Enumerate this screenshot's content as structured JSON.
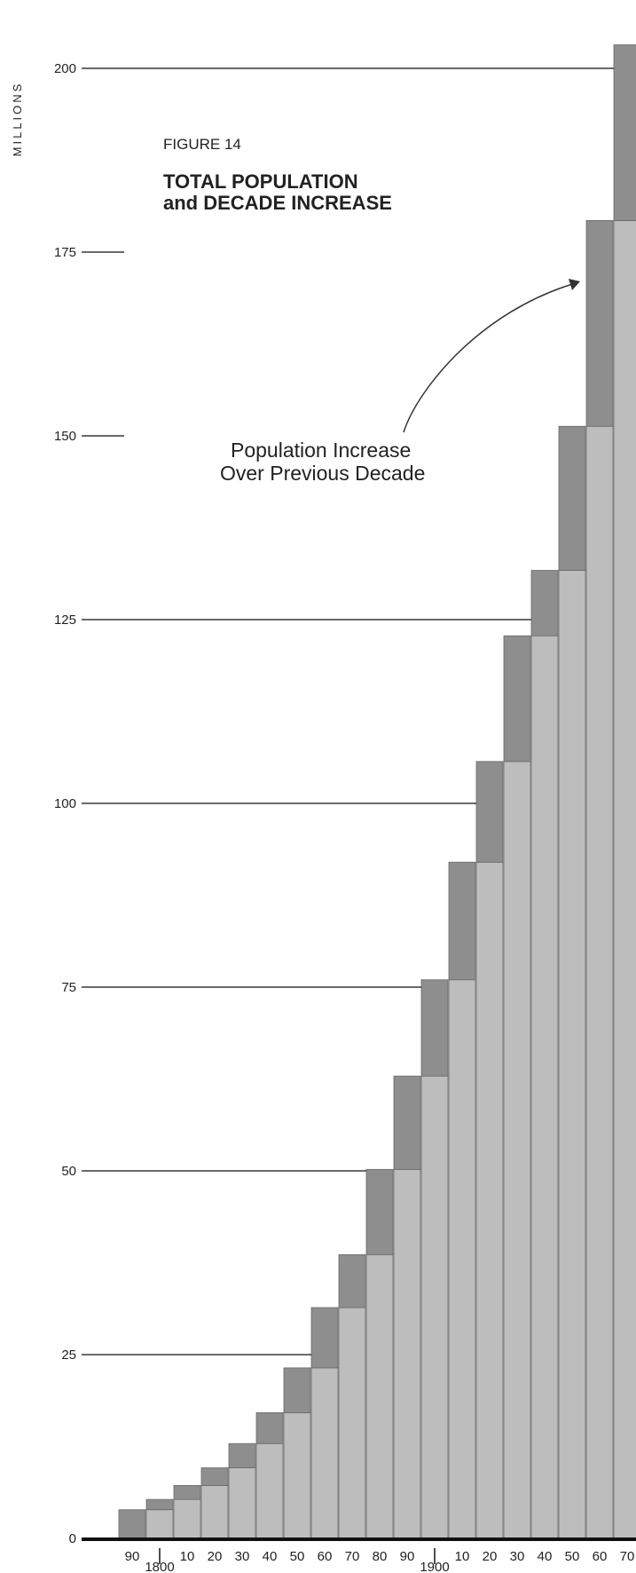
{
  "chart_data": {
    "type": "bar",
    "figure_label": "FIGURE 14",
    "title_line1": "TOTAL POPULATION",
    "title_line2": "and DECADE INCREASE",
    "ylabel": "MILLIONS",
    "annotation_line1": "Population Increase",
    "annotation_line2": "Over Previous Decade",
    "ylim": [
      0,
      205
    ],
    "yticks": [
      0,
      25,
      50,
      75,
      100,
      125,
      150,
      175,
      200
    ],
    "categories": [
      "1790",
      "1800",
      "1810",
      "1820",
      "1830",
      "1840",
      "1850",
      "1860",
      "1870",
      "1880",
      "1890",
      "1900",
      "1910",
      "1920",
      "1930",
      "1940",
      "1950",
      "1960",
      "1970"
    ],
    "x_tick_labels": [
      "90",
      "",
      "10",
      "20",
      "30",
      "40",
      "50",
      "60",
      "70",
      "80",
      "90",
      "",
      "10",
      "20",
      "30",
      "40",
      "50",
      "60",
      "70"
    ],
    "century_labels": [
      {
        "index": 1,
        "label": "1800"
      },
      {
        "index": 11,
        "label": "1900"
      }
    ],
    "values": [
      3.9,
      5.3,
      7.2,
      9.6,
      12.9,
      17.1,
      23.2,
      31.4,
      38.6,
      50.2,
      62.9,
      76.0,
      92.0,
      105.7,
      122.8,
      131.7,
      151.3,
      179.3,
      203.2
    ],
    "previous_values": [
      0,
      3.9,
      5.3,
      7.2,
      9.6,
      12.9,
      17.1,
      23.2,
      31.4,
      38.6,
      50.2,
      62.9,
      76.0,
      92.0,
      105.7,
      122.8,
      131.7,
      151.3,
      179.3
    ],
    "series": [
      {
        "name": "Population Increase Over Previous Decade"
      }
    ],
    "colors": {
      "bar_base": "#bdbdbd",
      "bar_increase": "#8e8e8e",
      "bar_edge": "#6a6a6a",
      "grid": "#111111"
    }
  }
}
